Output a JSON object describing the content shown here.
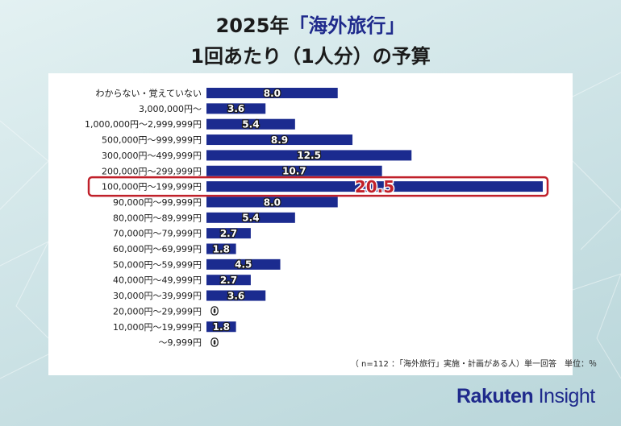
{
  "header": {
    "title_year": "2025年",
    "title_topic": "「海外旅行」",
    "title_line2": "1回あたり（1人分）の予算"
  },
  "note": "（ n=112 ：「海外旅行」実施・計画がある人）単一回答　単位：％",
  "logo": {
    "brand": "Rakuten",
    "product": "Insight"
  },
  "colors": {
    "bar": "#1b2b8f",
    "highlight": "#c0202a",
    "label_fill": "#ffffff",
    "label_stroke": "#1a1a1a"
  },
  "chart_data": {
    "type": "bar",
    "orientation": "horizontal",
    "categories": [
      "わからない・覚えていない",
      "3,000,000円～",
      "1,000,000円～2,999,999円",
      "500,000円～999,999円",
      "300,000円～499,999円",
      "200,000円～299,999円",
      "100,000円～199,999円",
      "90,000円～99,999円",
      "80,000円～89,999円",
      "70,000円～79,999円",
      "60,000円～69,999円",
      "50,000円～59,999円",
      "40,000円～49,999円",
      "30,000円～39,999円",
      "20,000円～29,999円",
      "10,000円～19,999円",
      "～9,999円"
    ],
    "values": [
      8.0,
      3.6,
      5.4,
      8.9,
      12.5,
      10.7,
      20.5,
      8.0,
      5.4,
      2.7,
      1.8,
      4.5,
      2.7,
      3.6,
      0,
      1.8,
      0
    ],
    "value_labels": [
      "8.0",
      "3.6",
      "5.4",
      "8.9",
      "12.5",
      "10.7",
      "20.5",
      "8.0",
      "5.4",
      "2.7",
      "1.8",
      "4.5",
      "2.7",
      "3.6",
      "0",
      "1.8",
      "0"
    ],
    "highlight_category": "100,000円～199,999円",
    "xlim": [
      0,
      20.5
    ],
    "grid": false,
    "legend": "none"
  }
}
